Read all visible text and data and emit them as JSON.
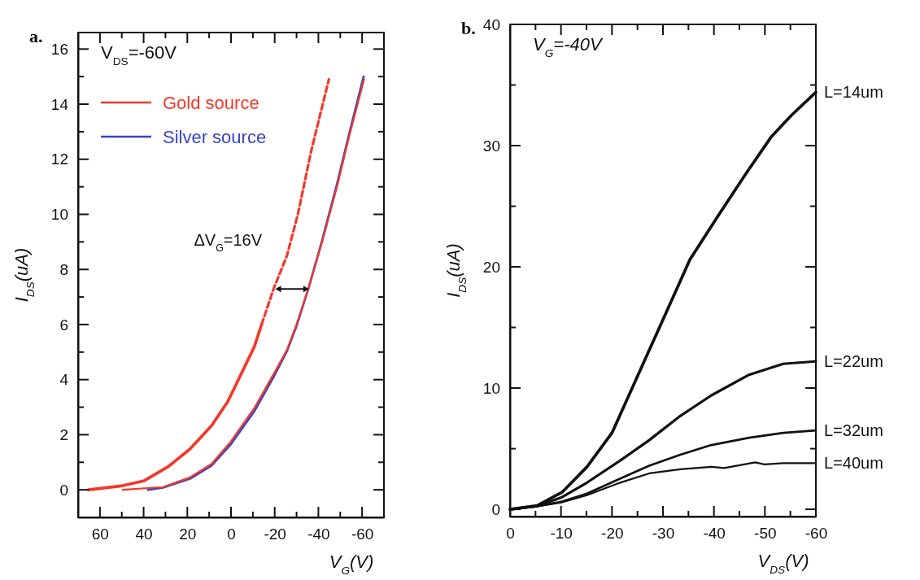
{
  "chart_data": [
    {
      "type": "line",
      "title": "a.",
      "xlabel": "V$_{G}$(V)",
      "ylabel": "I$_{DS}$(uA)",
      "annotations": [
        "V$_{DS}$=-60V",
        "ΔV$_{G}$=16V"
      ],
      "xlim": [
        70,
        -70
      ],
      "ylim": [
        -1,
        16.6
      ],
      "xticks": [
        60,
        {
          "value": 50,
          "label": null
        },
        40,
        {
          "value": 30,
          "label": null
        },
        20,
        {
          "value": 10,
          "label": null
        },
        0,
        {
          "value": -10,
          "label": null
        },
        -20,
        {
          "value": -30,
          "label": null
        },
        -40,
        {
          "value": -50,
          "label": null
        },
        -60
      ],
      "yticks": [
        0,
        {
          "value": 1,
          "label": null
        },
        2,
        {
          "value": 3,
          "label": null
        },
        4,
        {
          "value": 5,
          "label": null
        },
        6,
        {
          "value": 7,
          "label": null
        },
        8,
        {
          "value": 9,
          "label": null
        },
        10,
        {
          "value": 11,
          "label": null
        },
        12,
        {
          "value": 13,
          "label": null
        },
        14,
        {
          "value": 15,
          "label": null
        },
        16
      ],
      "legend": "top left",
      "grid": false,
      "marker": "none",
      "series": [
        {
          "name": "Gold source",
          "color": "#f2382a",
          "x": [
            65.2,
            49.6,
            39.7,
            28.6,
            18.8,
            8.9,
            1.5,
            -3.4,
            -10.7,
            -14
          ],
          "values": [
            0,
            0.15,
            0.33,
            0.85,
            1.48,
            2.33,
            3.2,
            4.0,
            5.2,
            6.0
          ]
        },
        {
          "color": "#f2382a",
          "line_style": "dashed",
          "x": [
            -14,
            -19.5,
            -25.6,
            -30.6,
            -36.7,
            -44.8
          ],
          "values": [
            6.0,
            7.3,
            8.5,
            10.0,
            12.3,
            14.9
          ]
        },
        {
          "name": "Silver source",
          "color": "#3a44c4",
          "x": [
            38,
            31.1,
            18.8,
            8.9,
            0.3,
            -10.9,
            -19.5,
            -25.7,
            -30,
            -35.6,
            -41.7,
            -48.5,
            -54,
            -60.7
          ],
          "values": [
            0,
            0.08,
            0.4,
            0.88,
            1.63,
            2.88,
            4.1,
            5.05,
            5.95,
            7.35,
            9.05,
            11.1,
            12.9,
            15.0
          ]
        },
        {
          "color": "#f2382a",
          "x": [
            49.6,
            31.1,
            18.8,
            8.9,
            0.3,
            -10.9,
            -19.5,
            -25.7,
            -30,
            -35.6,
            -41.7,
            -48.5,
            -54,
            -60.9
          ],
          "values": [
            0,
            0.1,
            0.45,
            0.94,
            1.73,
            3.0,
            4.2,
            5.1,
            6.0,
            7.35,
            9.0,
            11.0,
            12.8,
            14.9
          ]
        }
      ]
    },
    {
      "type": "line",
      "title": "b.",
      "xlabel": "V$_{DS}$(V)",
      "ylabel": "I$_{DS}$(uA)",
      "annotations": [
        "V$_{G}$=-40V"
      ],
      "xlim": [
        0,
        -60
      ],
      "ylim": [
        -0.6,
        40
      ],
      "xticks": [
        0,
        {
          "value": -5,
          "label": null
        },
        -10,
        {
          "value": -15,
          "label": null
        },
        -20,
        {
          "value": -25,
          "label": null
        },
        -30,
        {
          "value": -35,
          "label": null
        },
        -40,
        {
          "value": -45,
          "label": null
        },
        -50,
        {
          "value": -55,
          "label": null
        },
        -60
      ],
      "yticks": [
        0,
        {
          "value": 5,
          "label": null
        },
        10,
        {
          "value": 15,
          "label": null
        },
        20,
        {
          "value": 25,
          "label": null
        },
        30,
        {
          "value": 35,
          "label": null
        },
        40
      ],
      "legend": "right",
      "grid": false,
      "marker": "none",
      "series": [
        {
          "name": "L=14um",
          "color": "#111111",
          "x": [
            0,
            -5.3,
            -10.2,
            -15.1,
            -20,
            -26.1,
            -30.7,
            -35.3,
            -40.8,
            -46.3,
            -51.2,
            -55.2,
            -60
          ],
          "values": [
            0,
            0.3,
            1.4,
            3.5,
            6.3,
            12.0,
            16.3,
            20.6,
            24.2,
            27.7,
            30.7,
            32.5,
            34.4
          ]
        },
        {
          "name": "L=22um",
          "color": "#111111",
          "x": [
            0,
            -5.3,
            -10.2,
            -15.1,
            -21.2,
            -27.3,
            -33.4,
            -39.5,
            -46.9,
            -53.6,
            -60
          ],
          "values": [
            0,
            0.26,
            1.0,
            2.2,
            3.9,
            5.7,
            7.7,
            9.4,
            11.1,
            12.0,
            12.2
          ]
        },
        {
          "name": "L=32um",
          "color": "#111111",
          "x": [
            0,
            -5.3,
            -10.2,
            -15.1,
            -21.2,
            -27.3,
            -33.4,
            -39.5,
            -46.9,
            -53.6,
            -60
          ],
          "values": [
            0,
            0.25,
            0.64,
            1.3,
            2.45,
            3.6,
            4.5,
            5.3,
            5.9,
            6.3,
            6.5
          ]
        },
        {
          "name": "L=40um",
          "color": "#111111",
          "x": [
            0,
            -5.3,
            -10.2,
            -15.1,
            -21.2,
            -27.3,
            -33.4,
            -39.5,
            -42,
            -48.1,
            -49.9,
            -53.6,
            -60
          ],
          "values": [
            0,
            0.25,
            0.57,
            1.16,
            2.14,
            2.96,
            3.3,
            3.5,
            3.4,
            3.87,
            3.7,
            3.8,
            3.8
          ]
        }
      ]
    }
  ]
}
